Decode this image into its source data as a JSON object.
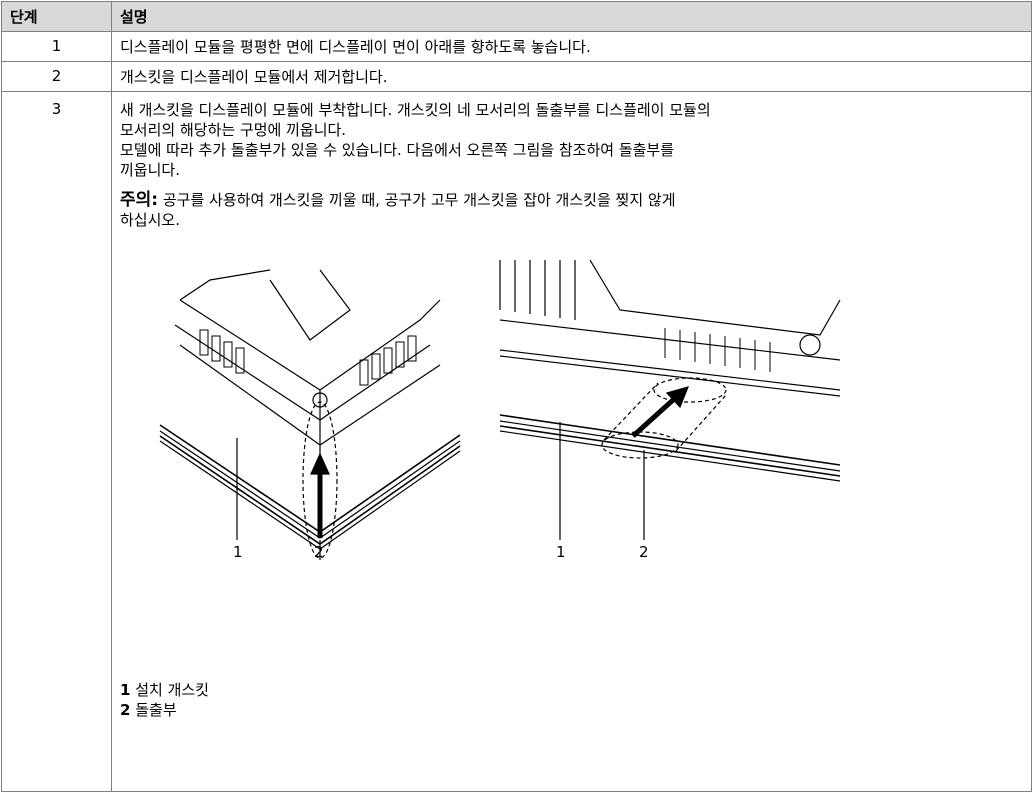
{
  "table": {
    "header": [
      "단계",
      "설명"
    ],
    "rows": [
      {
        "step": "1",
        "lines": [
          "디스플레이 모듈을 평평한 면에 디스플레이 면이 아래를 향하도록 놓습니다."
        ]
      },
      {
        "step": "2",
        "lines": [
          "개스킷을 디스플레이 모듈에서 제거합니다."
        ]
      },
      {
        "step": "3",
        "paragraphs": [
          [
            "새 개스킷을 디스플레이 모듈에 부착합니다. 개스킷의 네 모서리의 돌출부를 디스플레이 모듈의",
            "모서리의 해당하는 구멍에 끼웁니다."
          ],
          [
            "모델에 따라 추가 돌출부가 있을 수 있습니다. 다음에서 오른쪽 그림을 참조하여 돌출부를",
            "끼웁니다."
          ]
        ],
        "note": {
          "label": "주의:",
          "lines": [
            "공구를 사용하여 개스킷을 끼울 때, 공구가 고무 개스킷을 잡아 개스킷을 찢지 않게",
            "하십시오."
          ]
        },
        "figures": [
          {
            "callouts": [
              "1",
              "2"
            ]
          },
          {
            "callouts": [
              "1",
              "2"
            ]
          }
        ],
        "legend": [
          {
            "number": "1",
            "text": "설치 개스킷"
          },
          {
            "number": "2",
            "text": "돌출부"
          }
        ]
      }
    ]
  }
}
